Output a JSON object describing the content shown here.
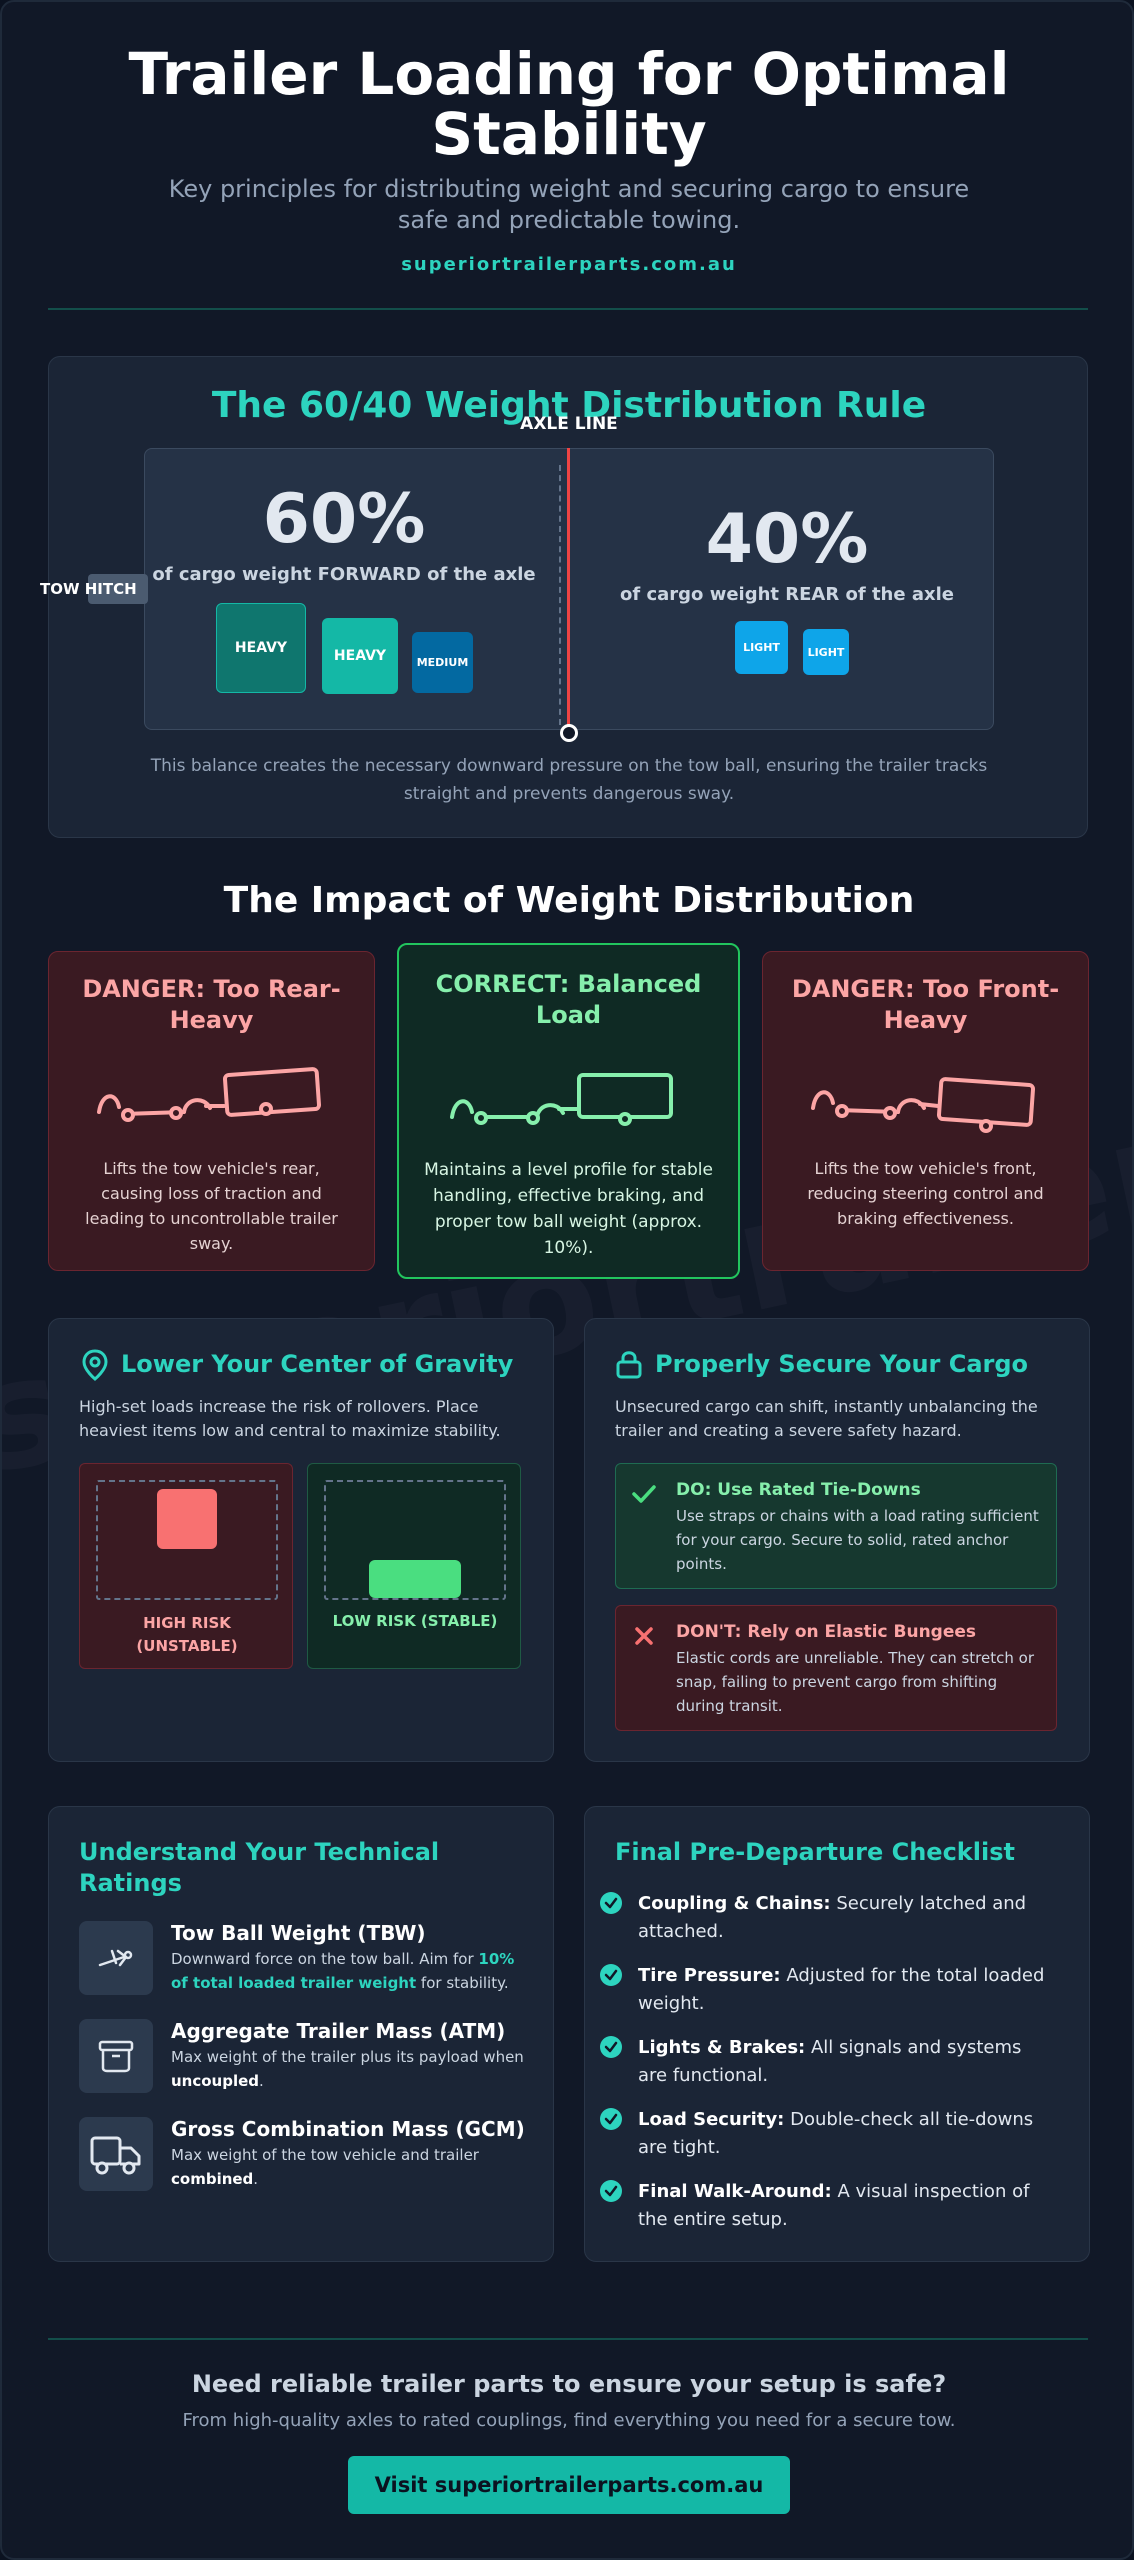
{
  "header": {
    "title": "Trailer Loading for Optimal Stability",
    "subtitle": "Key principles for distributing weight and securing cargo to ensure safe and predictable towing.",
    "site": "superiortrailerparts.com.au"
  },
  "rule": {
    "title": "The 60/40 Weight Distribution Rule",
    "axle_label": "AXLE LINE",
    "hitch_label": "TOW HITCH",
    "forward_pct": "60%",
    "forward_text": "of cargo weight FORWARD of the axle",
    "rear_pct": "40%",
    "rear_text": "of cargo weight REAR of the axle",
    "boxes_forward": [
      "HEAVY",
      "HEAVY",
      "MEDIUM"
    ],
    "boxes_rear": [
      "LIGHT",
      "LIGHT"
    ],
    "note": "This balance creates the necessary downward pressure on the tow ball, ensuring the trailer tracks straight and prevents dangerous sway."
  },
  "impact": {
    "title": "The Impact of Weight Distribution",
    "cards": [
      {
        "title": "DANGER: Too Rear-Heavy",
        "text": "Lifts the tow vehicle's rear, causing loss of traction and leading to uncontrollable trailer sway."
      },
      {
        "title": "CORRECT: Balanced Load",
        "text": "Maintains a level profile for stable handling, effective braking, and proper tow ball weight (approx. 10%)."
      },
      {
        "title": "DANGER: Too Front-Heavy",
        "text": "Lifts the tow vehicle's front, reducing steering control and braking effectiveness."
      }
    ]
  },
  "watermark": "superiortrailerparts.com.au",
  "gravity": {
    "title": "Lower Your Center of Gravity",
    "text": "High-set loads increase the risk of rollovers. Place heaviest items low and central to maximize stability.",
    "high_label": "HIGH RISK (UNSTABLE)",
    "low_label": "LOW RISK (STABLE)"
  },
  "secure": {
    "title": "Properly Secure Your Cargo",
    "text": "Unsecured cargo can shift, instantly unbalancing the trailer and creating a severe safety hazard.",
    "do_title": "DO: Use Rated Tie-Downs",
    "do_text": "Use straps or chains with a load rating sufficient for your cargo. Secure to solid, rated anchor points.",
    "dont_title": "DON'T: Rely on Elastic Bungees",
    "dont_text": "Elastic cords are unreliable. They can stretch or snap, failing to prevent cargo from shifting during transit."
  },
  "ratings": {
    "title": "Understand Your Technical Ratings",
    "items": [
      {
        "title": "Tow Ball Weight (TBW)",
        "text_a": "Downward force on the tow ball. Aim for ",
        "text_b": "10% of total loaded trailer weight",
        "text_c": " for stability."
      },
      {
        "title": "Aggregate Trailer Mass (ATM)",
        "text_a": "Max weight of the trailer plus its payload when ",
        "text_b": "uncoupled",
        "text_c": "."
      },
      {
        "title": "Gross Combination Mass (GCM)",
        "text_a": "Max weight of the tow vehicle and trailer ",
        "text_b": "combined",
        "text_c": "."
      }
    ]
  },
  "checklist": {
    "title": "Final Pre-Departure Checklist",
    "items": [
      {
        "label": "Coupling & Chains:",
        "text": " Securely latched and attached."
      },
      {
        "label": "Tire Pressure:",
        "text": " Adjusted for the total loaded weight."
      },
      {
        "label": "Lights & Brakes:",
        "text": " All signals and systems are functional."
      },
      {
        "label": "Load Security:",
        "text": " Double-check all tie-downs are tight."
      },
      {
        "label": "Final Walk-Around:",
        "text": " A visual inspection of the entire setup."
      }
    ]
  },
  "footer": {
    "title": "Need reliable trailer parts to ensure your setup is safe?",
    "text": "From high-quality axles to rated couplings, find everything you need for a secure tow.",
    "button": "Visit superiortrailerparts.com.au"
  },
  "colors": {
    "accent": "#2dd4bf",
    "danger": "#fca5a5",
    "success": "#86efac",
    "button": "#14b8a6"
  }
}
